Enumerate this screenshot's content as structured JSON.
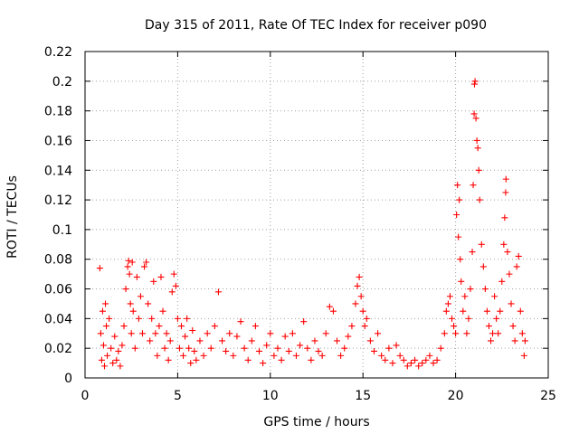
{
  "chart_data": {
    "type": "scatter",
    "title": "Day 315 of 2011, Rate Of TEC Index for receiver p090",
    "xlabel": "GPS time / hours",
    "ylabel": "ROTI / TECUs",
    "xlim": [
      0,
      25
    ],
    "ylim": [
      0,
      0.22
    ],
    "xticks": [
      0,
      5,
      10,
      15,
      20,
      25
    ],
    "xtick_labels": [
      "0",
      "5",
      "10",
      "15",
      "20",
      "25"
    ],
    "yticks": [
      0,
      0.02,
      0.04,
      0.06,
      0.08,
      0.1,
      0.12,
      0.14,
      0.16,
      0.18,
      0.2,
      0.22
    ],
    "ytick_labels": [
      "0",
      "0.02",
      "0.04",
      "0.06",
      "0.08",
      "0.1",
      "0.12",
      "0.14",
      "0.16",
      "0.18",
      "0.2",
      "0.22"
    ],
    "grid": true,
    "marker": "+",
    "color": "#ff0000",
    "series": [
      {
        "name": "ROTI",
        "points": [
          [
            0.8,
            0.074
          ],
          [
            0.85,
            0.03
          ],
          [
            0.9,
            0.012
          ],
          [
            0.95,
            0.045
          ],
          [
            1.0,
            0.022
          ],
          [
            1.05,
            0.008
          ],
          [
            1.1,
            0.05
          ],
          [
            1.15,
            0.035
          ],
          [
            1.2,
            0.015
          ],
          [
            1.3,
            0.04
          ],
          [
            1.4,
            0.02
          ],
          [
            1.5,
            0.01
          ],
          [
            1.6,
            0.028
          ],
          [
            1.7,
            0.012
          ],
          [
            1.8,
            0.018
          ],
          [
            1.9,
            0.008
          ],
          [
            2.0,
            0.022
          ],
          [
            2.1,
            0.035
          ],
          [
            2.2,
            0.06
          ],
          [
            2.3,
            0.075
          ],
          [
            2.35,
            0.079
          ],
          [
            2.4,
            0.07
          ],
          [
            2.45,
            0.05
          ],
          [
            2.5,
            0.03
          ],
          [
            2.55,
            0.078
          ],
          [
            2.6,
            0.045
          ],
          [
            2.7,
            0.02
          ],
          [
            2.8,
            0.068
          ],
          [
            2.9,
            0.04
          ],
          [
            3.0,
            0.055
          ],
          [
            3.1,
            0.03
          ],
          [
            3.2,
            0.075
          ],
          [
            3.3,
            0.078
          ],
          [
            3.4,
            0.05
          ],
          [
            3.5,
            0.025
          ],
          [
            3.6,
            0.04
          ],
          [
            3.7,
            0.065
          ],
          [
            3.8,
            0.03
          ],
          [
            3.9,
            0.015
          ],
          [
            4.0,
            0.035
          ],
          [
            4.1,
            0.068
          ],
          [
            4.2,
            0.045
          ],
          [
            4.3,
            0.02
          ],
          [
            4.4,
            0.03
          ],
          [
            4.5,
            0.012
          ],
          [
            4.6,
            0.025
          ],
          [
            4.7,
            0.058
          ],
          [
            4.8,
            0.07
          ],
          [
            4.9,
            0.062
          ],
          [
            5.0,
            0.04
          ],
          [
            5.1,
            0.02
          ],
          [
            5.2,
            0.035
          ],
          [
            5.3,
            0.015
          ],
          [
            5.4,
            0.028
          ],
          [
            5.5,
            0.04
          ],
          [
            5.6,
            0.02
          ],
          [
            5.7,
            0.01
          ],
          [
            5.8,
            0.032
          ],
          [
            5.9,
            0.018
          ],
          [
            6.0,
            0.012
          ],
          [
            6.2,
            0.025
          ],
          [
            6.4,
            0.015
          ],
          [
            6.6,
            0.03
          ],
          [
            6.8,
            0.02
          ],
          [
            7.0,
            0.035
          ],
          [
            7.2,
            0.058
          ],
          [
            7.4,
            0.025
          ],
          [
            7.6,
            0.018
          ],
          [
            7.8,
            0.03
          ],
          [
            8.0,
            0.015
          ],
          [
            8.2,
            0.028
          ],
          [
            8.4,
            0.038
          ],
          [
            8.6,
            0.02
          ],
          [
            8.8,
            0.012
          ],
          [
            9.0,
            0.025
          ],
          [
            9.2,
            0.035
          ],
          [
            9.4,
            0.018
          ],
          [
            9.6,
            0.01
          ],
          [
            9.8,
            0.022
          ],
          [
            10.0,
            0.03
          ],
          [
            10.2,
            0.015
          ],
          [
            10.4,
            0.02
          ],
          [
            10.6,
            0.012
          ],
          [
            10.8,
            0.028
          ],
          [
            11.0,
            0.018
          ],
          [
            11.2,
            0.03
          ],
          [
            11.4,
            0.015
          ],
          [
            11.6,
            0.022
          ],
          [
            11.8,
            0.038
          ],
          [
            12.0,
            0.02
          ],
          [
            12.2,
            0.012
          ],
          [
            12.4,
            0.025
          ],
          [
            12.6,
            0.018
          ],
          [
            12.8,
            0.015
          ],
          [
            13.0,
            0.03
          ],
          [
            13.2,
            0.048
          ],
          [
            13.4,
            0.045
          ],
          [
            13.6,
            0.025
          ],
          [
            13.8,
            0.015
          ],
          [
            14.0,
            0.02
          ],
          [
            14.2,
            0.028
          ],
          [
            14.4,
            0.035
          ],
          [
            14.6,
            0.05
          ],
          [
            14.7,
            0.062
          ],
          [
            14.8,
            0.068
          ],
          [
            14.9,
            0.055
          ],
          [
            15.0,
            0.045
          ],
          [
            15.1,
            0.035
          ],
          [
            15.2,
            0.04
          ],
          [
            15.4,
            0.025
          ],
          [
            15.6,
            0.018
          ],
          [
            15.8,
            0.03
          ],
          [
            16.0,
            0.015
          ],
          [
            16.2,
            0.012
          ],
          [
            16.4,
            0.02
          ],
          [
            16.6,
            0.01
          ],
          [
            16.8,
            0.022
          ],
          [
            17.0,
            0.015
          ],
          [
            17.2,
            0.012
          ],
          [
            17.4,
            0.008
          ],
          [
            17.6,
            0.01
          ],
          [
            17.8,
            0.012
          ],
          [
            18.0,
            0.008
          ],
          [
            18.2,
            0.01
          ],
          [
            18.4,
            0.012
          ],
          [
            18.6,
            0.015
          ],
          [
            18.8,
            0.01
          ],
          [
            19.0,
            0.012
          ],
          [
            19.2,
            0.02
          ],
          [
            19.4,
            0.03
          ],
          [
            19.5,
            0.045
          ],
          [
            19.6,
            0.05
          ],
          [
            19.7,
            0.055
          ],
          [
            19.8,
            0.04
          ],
          [
            19.9,
            0.035
          ],
          [
            20.0,
            0.03
          ],
          [
            20.05,
            0.11
          ],
          [
            20.1,
            0.13
          ],
          [
            20.15,
            0.095
          ],
          [
            20.2,
            0.12
          ],
          [
            20.25,
            0.08
          ],
          [
            20.3,
            0.065
          ],
          [
            20.4,
            0.045
          ],
          [
            20.5,
            0.055
          ],
          [
            20.6,
            0.03
          ],
          [
            20.7,
            0.04
          ],
          [
            20.8,
            0.06
          ],
          [
            20.9,
            0.085
          ],
          [
            20.95,
            0.13
          ],
          [
            21.0,
            0.178
          ],
          [
            21.02,
            0.198
          ],
          [
            21.05,
            0.2
          ],
          [
            21.1,
            0.175
          ],
          [
            21.15,
            0.16
          ],
          [
            21.2,
            0.155
          ],
          [
            21.25,
            0.14
          ],
          [
            21.3,
            0.12
          ],
          [
            21.4,
            0.09
          ],
          [
            21.5,
            0.075
          ],
          [
            21.6,
            0.06
          ],
          [
            21.7,
            0.045
          ],
          [
            21.8,
            0.035
          ],
          [
            21.9,
            0.025
          ],
          [
            22.0,
            0.03
          ],
          [
            22.1,
            0.055
          ],
          [
            22.2,
            0.04
          ],
          [
            22.3,
            0.03
          ],
          [
            22.4,
            0.045
          ],
          [
            22.5,
            0.065
          ],
          [
            22.6,
            0.09
          ],
          [
            22.65,
            0.108
          ],
          [
            22.7,
            0.125
          ],
          [
            22.72,
            0.134
          ],
          [
            22.8,
            0.085
          ],
          [
            22.9,
            0.07
          ],
          [
            23.0,
            0.05
          ],
          [
            23.1,
            0.035
          ],
          [
            23.2,
            0.025
          ],
          [
            23.3,
            0.075
          ],
          [
            23.4,
            0.082
          ],
          [
            23.5,
            0.045
          ],
          [
            23.6,
            0.03
          ],
          [
            23.7,
            0.015
          ],
          [
            23.75,
            0.025
          ]
        ]
      }
    ]
  }
}
